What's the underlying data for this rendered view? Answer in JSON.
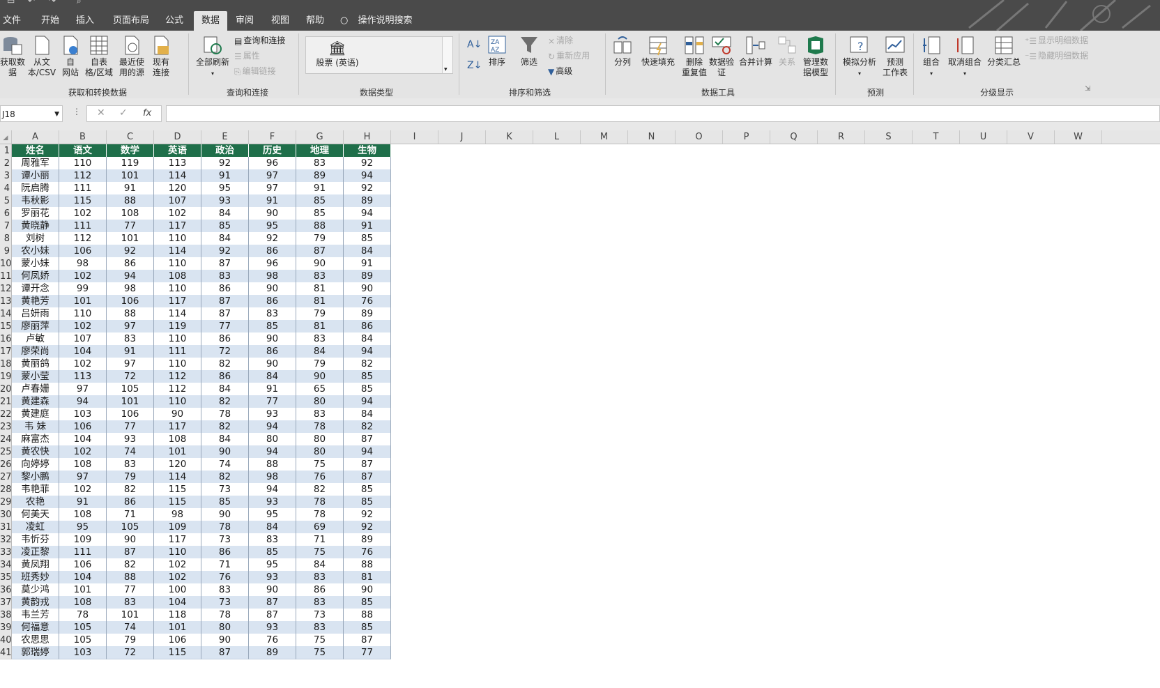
{
  "tabs": [
    "文件",
    "开始",
    "插入",
    "页面布局",
    "公式",
    "数据",
    "审阅",
    "视图",
    "帮助",
    "操作说明搜索"
  ],
  "active_tab": "数据",
  "ribbon": {
    "get_data": "获取数\n据",
    "from_csv": "从文\n本/CSV",
    "from_web": "自\n网站",
    "from_table": "自表\n格/区域",
    "recent_sources": "最近使\n用的源",
    "existing_conn": "现有\n连接",
    "refresh_all": "全部刷新",
    "query_conn": "查询和连接",
    "properties": "属性",
    "edit_links": "编辑链接",
    "datatype_value": "股票 (英语)",
    "sort": "排序",
    "filter": "筛选",
    "clear": "清除",
    "reapply": "重新应用",
    "advanced": "高级",
    "text_to_cols": "分列",
    "flash_fill": "快速填充",
    "remove_dup": "删除\n重复值",
    "validation": "数据验\n证",
    "consolidate": "合并计算",
    "relations": "关系",
    "data_model": "管理数\n据模型",
    "what_if": "模拟分析",
    "forecast": "预测\n工作表",
    "group": "组合",
    "ungroup": "取消组合",
    "subtotal": "分类汇总",
    "show_detail": "显示明细数据",
    "hide_detail": "隐藏明细数据",
    "groups": {
      "get_transform": "获取和转换数据",
      "queries": "查询和连接",
      "data_types": "数据类型",
      "sort_filter": "排序和筛选",
      "data_tools": "数据工具",
      "forecast": "预测",
      "outline": "分级显示"
    }
  },
  "namebox": "J18",
  "columns": [
    "A",
    "B",
    "C",
    "D",
    "E",
    "F",
    "G",
    "H",
    "I",
    "J",
    "K",
    "L",
    "M",
    "N",
    "O",
    "P",
    "Q",
    "R",
    "S",
    "T",
    "U",
    "V",
    "W"
  ],
  "headers": [
    "姓名",
    "语文",
    "数学",
    "英语",
    "政治",
    "历史",
    "地理",
    "生物"
  ],
  "rows": [
    [
      "周雅军",
      "110",
      "119",
      "113",
      "92",
      "96",
      "83",
      "92"
    ],
    [
      "谭小丽",
      "112",
      "101",
      "114",
      "91",
      "97",
      "89",
      "94"
    ],
    [
      "阮启腾",
      "111",
      "91",
      "120",
      "95",
      "97",
      "91",
      "92"
    ],
    [
      "韦秋影",
      "115",
      "88",
      "107",
      "93",
      "91",
      "85",
      "89"
    ],
    [
      "罗丽花",
      "102",
      "108",
      "102",
      "84",
      "90",
      "85",
      "94"
    ],
    [
      "黄晓静",
      "111",
      "77",
      "117",
      "85",
      "95",
      "88",
      "91"
    ],
    [
      "刘树",
      "112",
      "101",
      "110",
      "84",
      "92",
      "79",
      "85"
    ],
    [
      "农小妹",
      "106",
      "92",
      "114",
      "92",
      "86",
      "87",
      "84"
    ],
    [
      "蒙小妹",
      "98",
      "86",
      "110",
      "87",
      "96",
      "90",
      "91"
    ],
    [
      "何凤娇",
      "102",
      "94",
      "108",
      "83",
      "98",
      "83",
      "89"
    ],
    [
      "谭开念",
      "99",
      "98",
      "110",
      "86",
      "90",
      "81",
      "90"
    ],
    [
      "黄艳芳",
      "101",
      "106",
      "117",
      "87",
      "86",
      "81",
      "76"
    ],
    [
      "吕妍雨",
      "110",
      "88",
      "114",
      "87",
      "83",
      "79",
      "89"
    ],
    [
      "廖丽萍",
      "102",
      "97",
      "119",
      "77",
      "85",
      "81",
      "86"
    ],
    [
      "卢敏",
      "107",
      "83",
      "110",
      "86",
      "90",
      "83",
      "84"
    ],
    [
      "廖荣尚",
      "104",
      "91",
      "111",
      "72",
      "86",
      "84",
      "94"
    ],
    [
      "黄丽鸽",
      "102",
      "97",
      "110",
      "82",
      "90",
      "79",
      "82"
    ],
    [
      "蒙小莹",
      "113",
      "72",
      "112",
      "86",
      "84",
      "90",
      "85"
    ],
    [
      "卢春姗",
      "97",
      "105",
      "112",
      "84",
      "91",
      "65",
      "85"
    ],
    [
      "黄建森",
      "94",
      "101",
      "110",
      "82",
      "77",
      "80",
      "94"
    ],
    [
      "黄建庭",
      "103",
      "106",
      "90",
      "78",
      "93",
      "83",
      "84"
    ],
    [
      "韦 妹",
      "106",
      "77",
      "117",
      "82",
      "94",
      "78",
      "82"
    ],
    [
      "麻富杰",
      "104",
      "93",
      "108",
      "84",
      "80",
      "80",
      "87"
    ],
    [
      "黄农快",
      "102",
      "74",
      "101",
      "90",
      "94",
      "80",
      "94"
    ],
    [
      "向婷婷",
      "108",
      "83",
      "120",
      "74",
      "88",
      "75",
      "87"
    ],
    [
      "黎小鹏",
      "97",
      "79",
      "114",
      "82",
      "98",
      "76",
      "87"
    ],
    [
      "韦艳菲",
      "102",
      "82",
      "115",
      "73",
      "94",
      "82",
      "85"
    ],
    [
      "农艳",
      "91",
      "86",
      "115",
      "85",
      "93",
      "78",
      "85"
    ],
    [
      "何美天",
      "108",
      "71",
      "98",
      "90",
      "95",
      "78",
      "92"
    ],
    [
      "凌虹",
      "95",
      "105",
      "109",
      "78",
      "84",
      "69",
      "92"
    ],
    [
      "韦忻芬",
      "109",
      "90",
      "117",
      "73",
      "83",
      "71",
      "89"
    ],
    [
      "凌正黎",
      "111",
      "87",
      "110",
      "86",
      "85",
      "75",
      "76"
    ],
    [
      "黄凤翔",
      "106",
      "82",
      "102",
      "71",
      "95",
      "84",
      "88"
    ],
    [
      "班秀妙",
      "104",
      "88",
      "102",
      "76",
      "93",
      "83",
      "81"
    ],
    [
      "莫少鸿",
      "101",
      "77",
      "100",
      "83",
      "90",
      "86",
      "90"
    ],
    [
      "黄韵戎",
      "108",
      "83",
      "104",
      "73",
      "87",
      "83",
      "85"
    ],
    [
      "韦兰芳",
      "78",
      "101",
      "118",
      "78",
      "87",
      "73",
      "88"
    ],
    [
      "何福意",
      "105",
      "74",
      "101",
      "80",
      "93",
      "83",
      "85"
    ],
    [
      "农思思",
      "105",
      "79",
      "106",
      "90",
      "76",
      "75",
      "87"
    ],
    [
      "郭瑞婷",
      "103",
      "72",
      "115",
      "87",
      "89",
      "75",
      "77"
    ]
  ],
  "colors": {
    "header_fill": "#1f6f4a",
    "band_fill": "#d9e4f1",
    "tabbar": "#4a4a4a",
    "ribbon": "#e4e4e4"
  }
}
